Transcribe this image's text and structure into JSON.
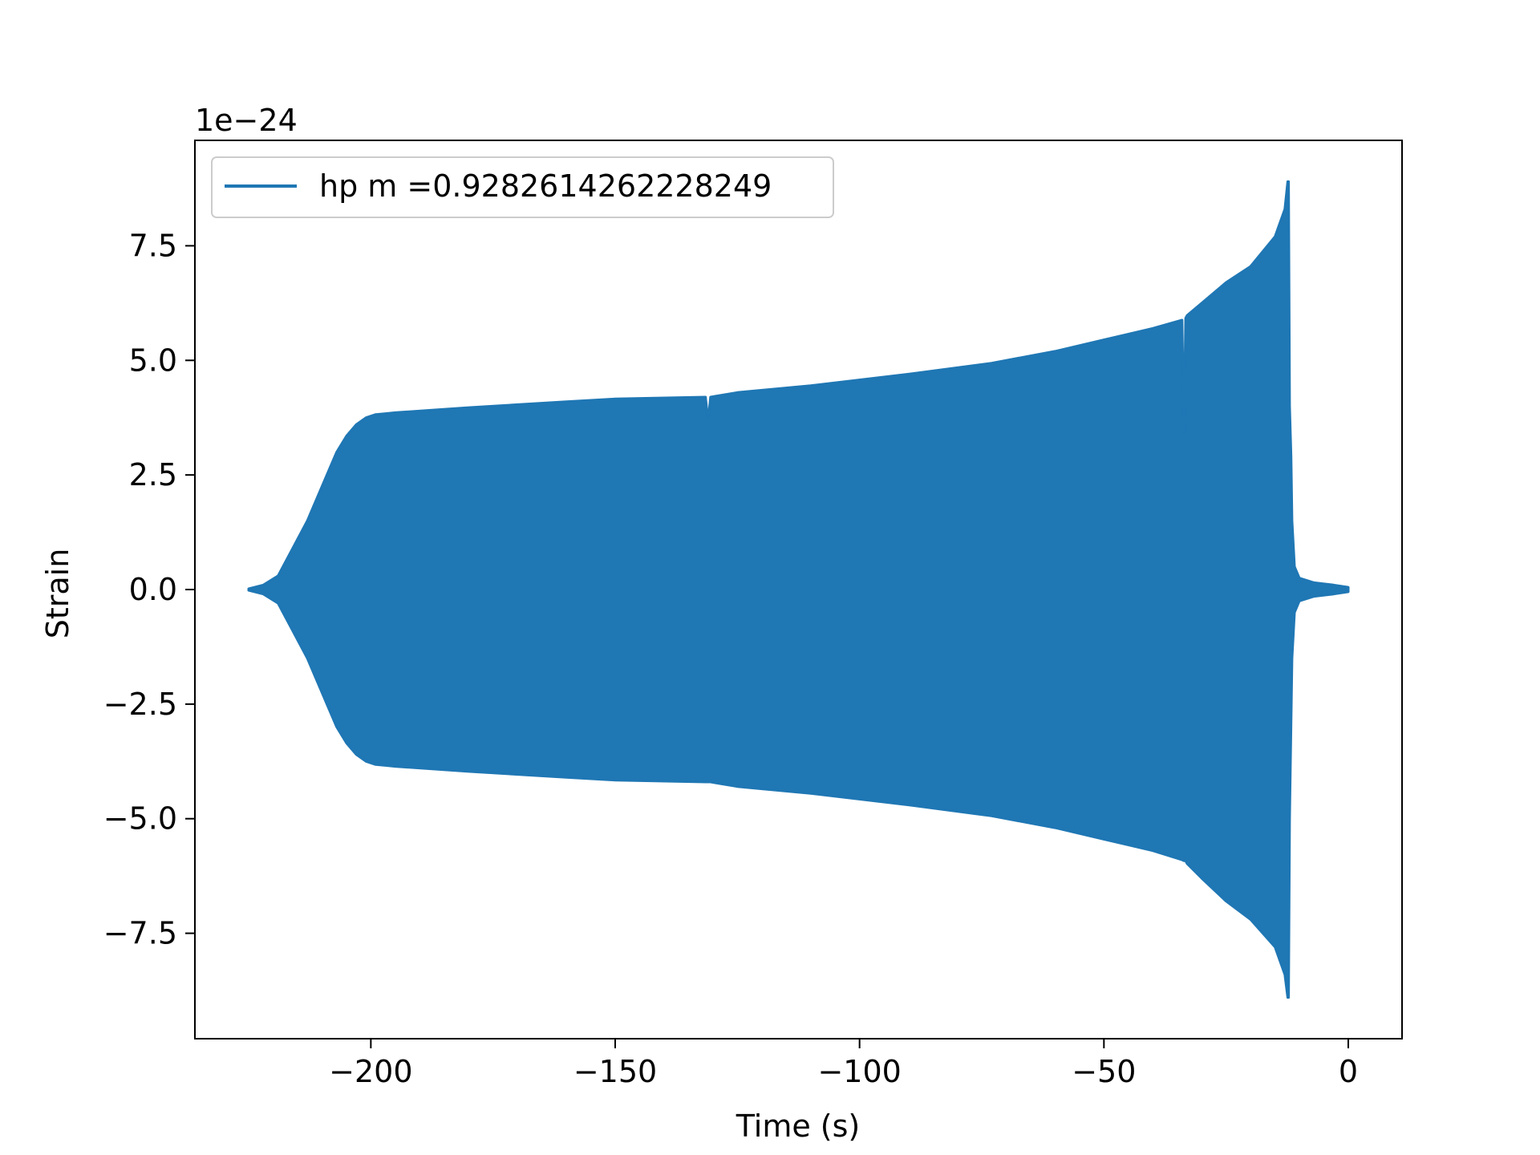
{
  "chart_data": {
    "type": "line",
    "title": "",
    "xlabel": "Time (s)",
    "ylabel": "Strain",
    "y_offset_label": "1e−24",
    "y_scale_exponent": -24,
    "xlim": [
      -236,
      11
    ],
    "ylim": [
      -9.8,
      9.8
    ],
    "x_ticks": [
      -200,
      -150,
      -100,
      -50,
      0
    ],
    "x_tick_labels": [
      "−200",
      "−150",
      "−100",
      "−50",
      "0"
    ],
    "y_ticks": [
      7.5,
      5.0,
      2.5,
      0.0,
      -2.5,
      -5.0,
      -7.5
    ],
    "y_tick_labels": [
      "7.5",
      "5.0",
      "2.5",
      "0.0",
      "−2.5",
      "−5.0",
      "−7.5"
    ],
    "grid": false,
    "legend_position": "upper-left",
    "series": [
      {
        "name": "hp m =0.9282614262228249",
        "color": "#1f77b4",
        "style": "dense oscillation filling envelope",
        "envelope_x": [
          -225,
          -222,
          -219,
          -216,
          -213,
          -211,
          -209,
          -207,
          -205,
          -203,
          -201,
          -199,
          -197,
          -195,
          -180,
          -160,
          -150,
          -131.5,
          -131,
          -130.5,
          -125,
          -110,
          -90,
          -73,
          -60,
          -50,
          -40,
          -34,
          -33.6,
          -33.3,
          -33,
          -30,
          -25,
          -20,
          -15,
          -13,
          -12.4,
          -12.2,
          -12,
          -11.7,
          -11.5,
          -11,
          -10,
          -7,
          -3,
          0
        ],
        "envelope_upper": [
          0.02,
          0.1,
          0.3,
          0.9,
          1.5,
          2.0,
          2.5,
          3.0,
          3.35,
          3.6,
          3.75,
          3.82,
          3.84,
          3.86,
          3.97,
          4.1,
          4.16,
          4.2,
          3.68,
          4.2,
          4.3,
          4.45,
          4.7,
          4.94,
          5.2,
          5.45,
          5.7,
          5.88,
          3.4,
          5.92,
          5.98,
          6.25,
          6.7,
          7.05,
          7.7,
          8.3,
          8.9,
          8.9,
          4.0,
          2.9,
          1.5,
          0.5,
          0.25,
          0.15,
          0.1,
          0.05
        ],
        "envelope_lower": [
          -0.02,
          -0.1,
          -0.3,
          -0.9,
          -1.5,
          -2.0,
          -2.5,
          -3.0,
          -3.35,
          -3.6,
          -3.75,
          -3.82,
          -3.84,
          -3.86,
          -3.97,
          -4.1,
          -4.16,
          -4.2,
          -4.2,
          -4.2,
          -4.3,
          -4.45,
          -4.7,
          -4.94,
          -5.2,
          -5.45,
          -5.7,
          -5.9,
          -5.92,
          -5.92,
          -5.98,
          -6.3,
          -6.8,
          -7.2,
          -7.8,
          -8.4,
          -8.9,
          -8.9,
          -5.0,
          -2.9,
          -1.5,
          -0.5,
          -0.25,
          -0.15,
          -0.1,
          -0.05
        ]
      }
    ]
  }
}
